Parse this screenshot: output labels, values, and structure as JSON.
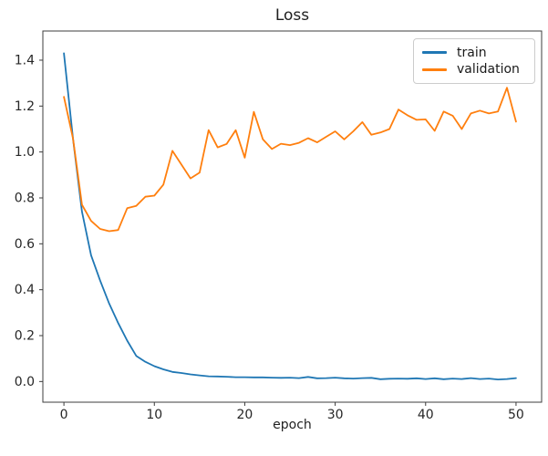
{
  "chart_data": {
    "type": "line",
    "title": "Loss",
    "xlabel": "epoch",
    "ylabel": "",
    "grid": false,
    "background": "#ffffff",
    "text_color": "#262626",
    "spine_color": "#3c3c3c",
    "xlim": [
      -2.33,
      52.83
    ],
    "ylim": [
      -0.09,
      1.527
    ],
    "xticks": [
      {
        "v": 0,
        "label": "0"
      },
      {
        "v": 10,
        "label": "10"
      },
      {
        "v": 20,
        "label": "20"
      },
      {
        "v": 30,
        "label": "30"
      },
      {
        "v": 40,
        "label": "40"
      },
      {
        "v": 50,
        "label": "50"
      }
    ],
    "yticks": [
      {
        "v": 0.0,
        "label": "0.0"
      },
      {
        "v": 0.2,
        "label": "0.2"
      },
      {
        "v": 0.4,
        "label": "0.4"
      },
      {
        "v": 0.6,
        "label": "0.6"
      },
      {
        "v": 0.8,
        "label": "0.8"
      },
      {
        "v": 1.0,
        "label": "1.0"
      },
      {
        "v": 1.2,
        "label": "1.2"
      },
      {
        "v": 1.4,
        "label": "1.4"
      }
    ],
    "legend": {
      "position": "upper right",
      "entries": [
        "train",
        "validation"
      ]
    },
    "x": [
      0,
      1,
      2,
      3,
      4,
      5,
      6,
      7,
      8,
      9,
      10,
      11,
      12,
      13,
      14,
      15,
      16,
      17,
      18,
      19,
      20,
      21,
      22,
      23,
      24,
      25,
      26,
      27,
      28,
      29,
      30,
      31,
      32,
      33,
      34,
      35,
      36,
      37,
      38,
      39,
      40,
      41,
      42,
      43,
      44,
      45,
      46,
      47,
      48,
      49,
      50
    ],
    "series": [
      {
        "name": "train",
        "color": "#1f77b4",
        "values": [
          1.43,
          1.06,
          0.74,
          0.55,
          0.44,
          0.34,
          0.255,
          0.178,
          0.112,
          0.086,
          0.067,
          0.053,
          0.042,
          0.037,
          0.031,
          0.027,
          0.023,
          0.022,
          0.021,
          0.019,
          0.019,
          0.018,
          0.018,
          0.017,
          0.016,
          0.017,
          0.015,
          0.02,
          0.014,
          0.015,
          0.017,
          0.014,
          0.013,
          0.015,
          0.016,
          0.01,
          0.012,
          0.013,
          0.012,
          0.014,
          0.011,
          0.014,
          0.01,
          0.013,
          0.011,
          0.015,
          0.011,
          0.013,
          0.009,
          0.011,
          0.015
        ]
      },
      {
        "name": "validation",
        "color": "#ff7f0e",
        "values": [
          1.24,
          1.06,
          0.77,
          0.7,
          0.665,
          0.655,
          0.66,
          0.755,
          0.765,
          0.805,
          0.81,
          0.858,
          1.005,
          0.945,
          0.885,
          0.91,
          1.095,
          1.02,
          1.035,
          1.095,
          0.975,
          1.175,
          1.055,
          1.013,
          1.036,
          1.03,
          1.04,
          1.06,
          1.042,
          1.066,
          1.09,
          1.055,
          1.09,
          1.13,
          1.075,
          1.085,
          1.1,
          1.185,
          1.16,
          1.14,
          1.142,
          1.092,
          1.176,
          1.158,
          1.1,
          1.168,
          1.18,
          1.168,
          1.176,
          1.28,
          1.132
        ]
      }
    ]
  }
}
